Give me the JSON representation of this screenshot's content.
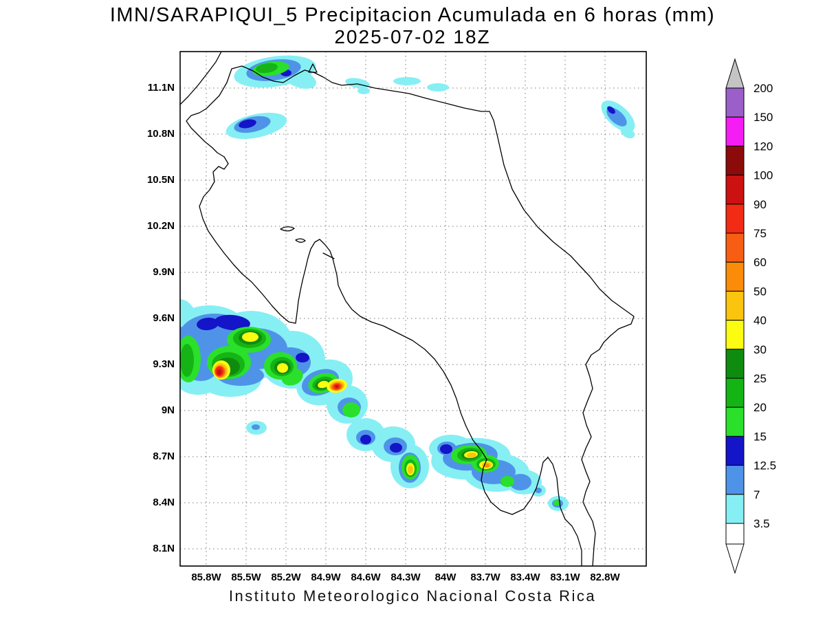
{
  "title": {
    "line1": "IMN/SARAPIQUI_5 Precipitacion Acumulada en 6 horas (mm)",
    "line2": "2025-07-02 18Z"
  },
  "footer": "Instituto Meteorologico Nacional Costa Rica",
  "map": {
    "lat_labels": [
      "11.1N",
      "10.8N",
      "10.5N",
      "10.2N",
      "9.9N",
      "9.6N",
      "9.3N",
      "9N",
      "8.7N",
      "8.4N",
      "8.1N"
    ],
    "lon_labels": [
      "85.8W",
      "85.5W",
      "85.2W",
      "84.9W",
      "84.6W",
      "84.3W",
      "84W",
      "83.7W",
      "83.4W",
      "83.1W",
      "82.8W"
    ]
  },
  "colorbar": {
    "levels_top_to_bottom": [
      "200",
      "150",
      "120",
      "100",
      "90",
      "75",
      "60",
      "50",
      "40",
      "30",
      "25",
      "20",
      "15",
      "12.5",
      "7",
      "3.5"
    ],
    "colors_top_to_bottom": [
      "#9b5fc9",
      "#f41df4",
      "#8b0b0b",
      "#cc1111",
      "#f22b14",
      "#f75e14",
      "#fb8c0a",
      "#fbc40f",
      "#fcfc13",
      "#0f8c0f",
      "#15b415",
      "#2ae02a",
      "#1414c8",
      "#4f93e8",
      "#86eff4"
    ],
    "over_color": "#c4c4c4",
    "under_color": "#ffffff"
  },
  "chart_data": {
    "type": "map",
    "region": "Costa Rica",
    "variable": "Precipitacion Acumulada en 6 horas (mm)",
    "model": "IMN/SARAPIQUI_5",
    "valid_time": "2025-07-02 18Z",
    "lon_range": [
      "86.0W",
      "82.5W"
    ],
    "lat_range": [
      "8.0N",
      "11.3N"
    ],
    "grid_interval_deg": 0.3,
    "colormap_levels_mm": [
      3.5,
      7,
      12.5,
      15,
      20,
      25,
      30,
      40,
      50,
      60,
      75,
      90,
      100,
      120,
      150,
      200
    ],
    "precip_features": [
      {
        "location": "NW border near Lake Nicaragua (~85.2W, 11.15N)",
        "peak_mm": "20-25"
      },
      {
        "location": "~85.45W, 10.85N",
        "peak_mm": "12.5-15"
      },
      {
        "location": "Caribbean NE (~82.7W, 10.95N)",
        "peak_mm": "12.5-15"
      },
      {
        "location": "Pacific coast band 86W-84.2W / 8.6N-9.6N, cores near 85.5W 9.3N and 84.9W 9.15N",
        "peak_mm": "90-100"
      },
      {
        "location": "South Pacific cluster ~83.8W-83.5W, 8.7N",
        "peak_mm": "50-60"
      },
      {
        "location": "Golfo Dulce coast ~83.1W, 8.4N",
        "peak_mm": "15-20"
      }
    ]
  }
}
